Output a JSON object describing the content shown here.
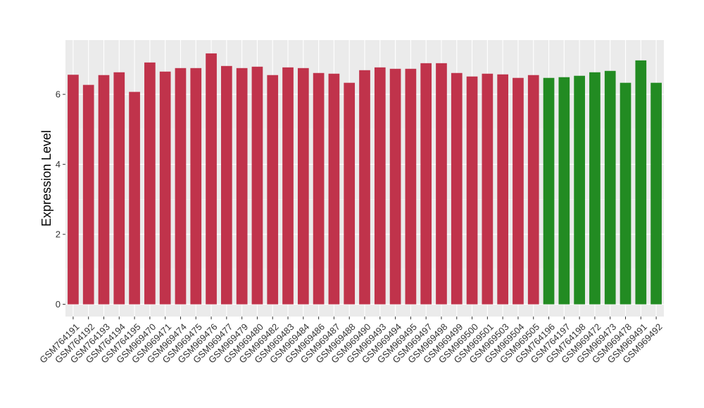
{
  "chart_data": {
    "type": "bar",
    "title": "",
    "xlabel": "",
    "ylabel": "Expression Level",
    "ylim": [
      -0.35,
      7.55
    ],
    "yticks": [
      0,
      2,
      4,
      6
    ],
    "grid": true,
    "legend": "none",
    "colors": {
      "panel": "#ebebeb",
      "grid_major": "#ffffff",
      "grid_minor": "#f5f5f5",
      "bar_red": "#c0334b",
      "bar_green": "#228b22"
    },
    "categories": [
      "GSM764191",
      "GSM764192",
      "GSM764193",
      "GSM764194",
      "GSM764195",
      "GSM969470",
      "GSM969471",
      "GSM969474",
      "GSM969475",
      "GSM969476",
      "GSM969477",
      "GSM969479",
      "GSM969480",
      "GSM969482",
      "GSM969483",
      "GSM969484",
      "GSM969486",
      "GSM969487",
      "GSM969488",
      "GSM969490",
      "GSM969493",
      "GSM969494",
      "GSM969495",
      "GSM969497",
      "GSM969498",
      "GSM969499",
      "GSM969500",
      "GSM969501",
      "GSM969503",
      "GSM969504",
      "GSM969505",
      "GSM764196",
      "GSM764197",
      "GSM764198",
      "GSM969472",
      "GSM969473",
      "GSM969478",
      "GSM969491",
      "GSM969492"
    ],
    "values": [
      6.56,
      6.27,
      6.55,
      6.63,
      6.07,
      6.91,
      6.65,
      6.75,
      6.75,
      7.17,
      6.81,
      6.75,
      6.79,
      6.55,
      6.77,
      6.75,
      6.61,
      6.59,
      6.33,
      6.69,
      6.77,
      6.73,
      6.73,
      6.89,
      6.89,
      6.61,
      6.51,
      6.59,
      6.57,
      6.47,
      6.55,
      6.47,
      6.49,
      6.53,
      6.63,
      6.67,
      6.33,
      6.97,
      6.33
    ],
    "bar_color_keys": [
      "bar_red",
      "bar_red",
      "bar_red",
      "bar_red",
      "bar_red",
      "bar_red",
      "bar_red",
      "bar_red",
      "bar_red",
      "bar_red",
      "bar_red",
      "bar_red",
      "bar_red",
      "bar_red",
      "bar_red",
      "bar_red",
      "bar_red",
      "bar_red",
      "bar_red",
      "bar_red",
      "bar_red",
      "bar_red",
      "bar_red",
      "bar_red",
      "bar_red",
      "bar_red",
      "bar_red",
      "bar_red",
      "bar_red",
      "bar_red",
      "bar_red",
      "bar_green",
      "bar_green",
      "bar_green",
      "bar_green",
      "bar_green",
      "bar_green",
      "bar_green",
      "bar_green"
    ]
  }
}
